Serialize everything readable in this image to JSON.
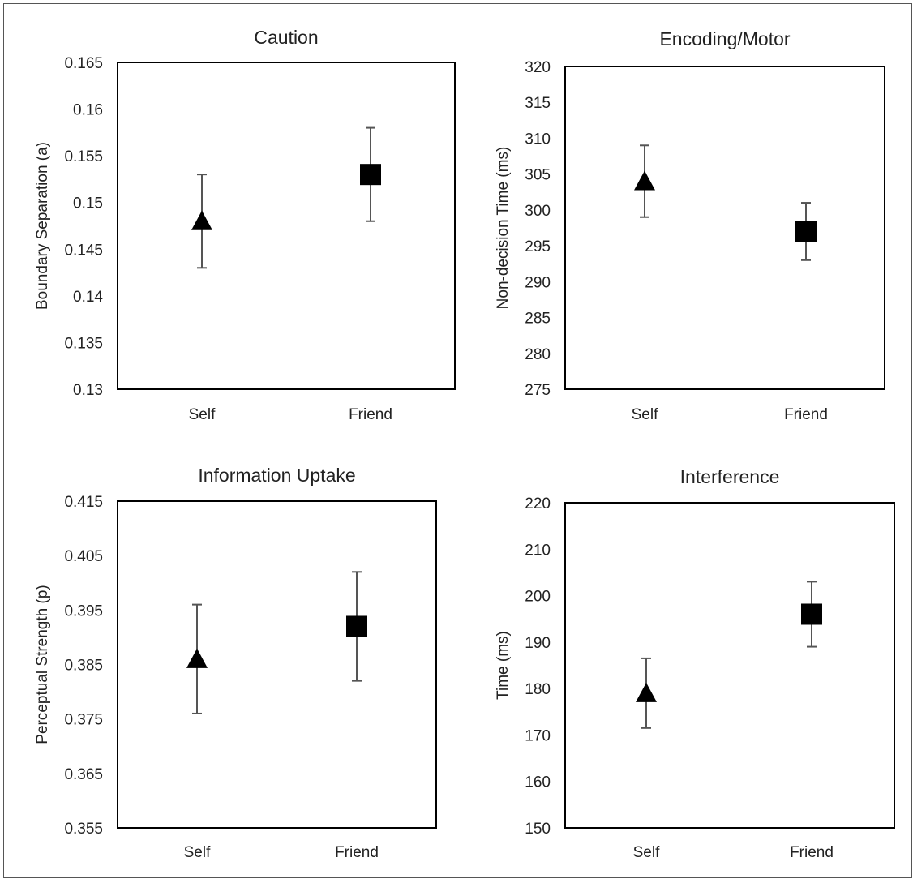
{
  "figure_border_color": "#555555",
  "chart_data": [
    {
      "type": "scatter",
      "title": "Caution",
      "ylabel": "Boundary Separation (a)",
      "xlabel": "",
      "categories": [
        "Self",
        "Friend"
      ],
      "ylim": [
        0.13,
        0.165
      ],
      "yticks": [
        0.13,
        0.135,
        0.14,
        0.145,
        0.15,
        0.155,
        0.16,
        0.165
      ],
      "ytick_labels": [
        "0.13",
        "0.135",
        "0.14",
        "0.145",
        "0.15",
        "0.155",
        "0.16",
        "0.165"
      ],
      "points": [
        {
          "category": "Self",
          "value": 0.148,
          "err_low": 0.143,
          "err_high": 0.153,
          "marker": "triangle"
        },
        {
          "category": "Friend",
          "value": 0.153,
          "err_low": 0.148,
          "err_high": 0.158,
          "marker": "square"
        }
      ],
      "grid": false,
      "legend": false
    },
    {
      "type": "scatter",
      "title": "Encoding/Motor",
      "ylabel": "Non-decision Time (ms)",
      "xlabel": "",
      "categories": [
        "Self",
        "Friend"
      ],
      "ylim": [
        275,
        320
      ],
      "yticks": [
        275,
        280,
        285,
        290,
        295,
        300,
        305,
        310,
        315,
        320
      ],
      "ytick_labels": [
        "275",
        "280",
        "285",
        "290",
        "295",
        "300",
        "305",
        "310",
        "315",
        "320"
      ],
      "points": [
        {
          "category": "Self",
          "value": 304,
          "err_low": 299,
          "err_high": 309,
          "marker": "triangle"
        },
        {
          "category": "Friend",
          "value": 297,
          "err_low": 293,
          "err_high": 301,
          "marker": "square"
        }
      ],
      "grid": false,
      "legend": false
    },
    {
      "type": "scatter",
      "title": "Information Uptake",
      "ylabel": "Perceptual Strength (p)",
      "xlabel": "",
      "categories": [
        "Self",
        "Friend"
      ],
      "ylim": [
        0.355,
        0.415
      ],
      "yticks": [
        0.355,
        0.365,
        0.375,
        0.385,
        0.395,
        0.405,
        0.415
      ],
      "ytick_labels": [
        "0.355",
        "0.365",
        "0.375",
        "0.385",
        "0.395",
        "0.405",
        "0.415"
      ],
      "points": [
        {
          "category": "Self",
          "value": 0.386,
          "err_low": 0.376,
          "err_high": 0.396,
          "marker": "triangle"
        },
        {
          "category": "Friend",
          "value": 0.392,
          "err_low": 0.382,
          "err_high": 0.402,
          "marker": "square"
        }
      ],
      "grid": false,
      "legend": false
    },
    {
      "type": "scatter",
      "title": "Interference",
      "ylabel": "Time (ms)",
      "xlabel": "",
      "categories": [
        "Self",
        "Friend"
      ],
      "ylim": [
        150,
        220
      ],
      "yticks": [
        150,
        160,
        170,
        180,
        190,
        200,
        210,
        220
      ],
      "ytick_labels": [
        "150",
        "160",
        "170",
        "180",
        "190",
        "200",
        "210",
        "220"
      ],
      "points": [
        {
          "category": "Self",
          "value": 179,
          "err_low": 171.5,
          "err_high": 186.5,
          "marker": "triangle"
        },
        {
          "category": "Friend",
          "value": 196,
          "err_low": 189,
          "err_high": 203,
          "marker": "square"
        }
      ],
      "grid": false,
      "legend": false
    }
  ]
}
